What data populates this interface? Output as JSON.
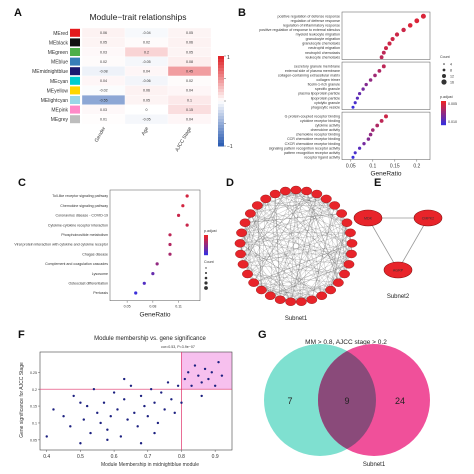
{
  "panels": {
    "A": "A",
    "B": "B",
    "C": "C",
    "D": "D",
    "E": "E",
    "F": "F",
    "G": "G"
  },
  "colors": {
    "heat_pos": "#e0262b",
    "heat_neg": "#2f5fb3",
    "heat_mid": "#ffffff",
    "dot_high": "#e8242a",
    "dot_low": "#3b2fd9",
    "node": "#e8242a",
    "node_edge": "#8a1010",
    "scatter": "#1c2080",
    "highlight": "#f08ce0",
    "cut": "#e0306a",
    "venn_left": "#7fe0d0",
    "venn_right": "#f0509a",
    "venn_overlap": "#8a4a7a"
  },
  "chart_data": [
    {
      "id": "A",
      "type": "heatmap",
      "title": "Module−trait relationships",
      "columns": [
        "Gender",
        "Age",
        "AJCC Stage"
      ],
      "rows": [
        {
          "name": "MEred",
          "color": "#e41a1c",
          "values": [
            0.06,
            -0.04,
            0.05
          ]
        },
        {
          "name": "MEblack",
          "color": "#111111",
          "values": [
            0.05,
            0.02,
            0.06
          ]
        },
        {
          "name": "MEgreen",
          "color": "#4daf4a",
          "values": [
            0.03,
            0.2,
            0.05
          ]
        },
        {
          "name": "MEblue",
          "color": "#377eb8",
          "values": [
            0.02,
            -0.05,
            0.08
          ]
        },
        {
          "name": "MEmidnightblue",
          "color": "#191970",
          "values": [
            -0.08,
            0.04,
            0.45
          ]
        },
        {
          "name": "MEcyan",
          "color": "#00ced1",
          "values": [
            0.04,
            -0.06,
            0.02
          ]
        },
        {
          "name": "MEyellow",
          "color": "#ffd700",
          "values": [
            -0.02,
            0.06,
            0.04
          ]
        },
        {
          "name": "MElightcyan",
          "color": "#9ad8e8",
          "values": [
            -0.55,
            0.05,
            0.1
          ]
        },
        {
          "name": "MEpink",
          "color": "#ff8ac8",
          "values": [
            0.03,
            0.0,
            0.15
          ]
        },
        {
          "name": "MEgrey",
          "color": "#bdbdbd",
          "values": [
            0.01,
            -0.05,
            0.04
          ]
        }
      ],
      "colorbar_ticks": [
        1,
        0.5,
        0,
        -0.5,
        -1
      ],
      "colorbar_visible_labels": [
        "1",
        "−1"
      ]
    },
    {
      "id": "B",
      "type": "scatter",
      "xlabel": "GeneRatio",
      "xticks": [
        0.05,
        0.1,
        0.15,
        0.2
      ],
      "xlim": [
        0.03,
        0.23
      ],
      "legend_count": "Count",
      "legend_padj": "p.adjust",
      "count_levels": [
        "4",
        "8",
        "12",
        "16"
      ],
      "padj_levels": [
        "0.005",
        "0.010"
      ],
      "groups": [
        {
          "terms": [
            {
              "label": "positive regulation of defense response",
              "x": 0.215,
              "padj": 0.001
            },
            {
              "label": "regulation of defense response",
              "x": 0.2,
              "padj": 0.001
            },
            {
              "label": "regulation of inflammatory response",
              "x": 0.185,
              "padj": 0.001
            },
            {
              "label": "positive regulation of response to external stimulus",
              "x": 0.17,
              "padj": 0.002
            },
            {
              "label": "myeloid leukocyte migration",
              "x": 0.155,
              "padj": 0.002
            },
            {
              "label": "granulocyte migration",
              "x": 0.145,
              "padj": 0.002
            },
            {
              "label": "granulocyte chemotaxis",
              "x": 0.138,
              "padj": 0.002
            },
            {
              "label": "neutrophil migration",
              "x": 0.13,
              "padj": 0.002
            },
            {
              "label": "neutrophil chemotaxis",
              "x": 0.125,
              "padj": 0.003
            },
            {
              "label": "leukocyte chemotaxis",
              "x": 0.12,
              "padj": 0.003
            }
          ]
        },
        {
          "terms": [
            {
              "label": "secretory granule membrane",
              "x": 0.125,
              "padj": 0.003
            },
            {
              "label": "external side of plasma membrane",
              "x": 0.115,
              "padj": 0.004
            },
            {
              "label": "collagen-containing extracellular matrix",
              "x": 0.105,
              "padj": 0.005
            },
            {
              "label": "collagen trimer",
              "x": 0.095,
              "padj": 0.006
            },
            {
              "label": "ficolin-1-rich granule",
              "x": 0.085,
              "padj": 0.007
            },
            {
              "label": "specific granule",
              "x": 0.078,
              "padj": 0.008
            },
            {
              "label": "plasma lipoprotein particle",
              "x": 0.07,
              "padj": 0.009
            },
            {
              "label": "lipoprotein particle",
              "x": 0.065,
              "padj": 0.01
            },
            {
              "label": "cytolytic granule",
              "x": 0.06,
              "padj": 0.011
            },
            {
              "label": "phagocytic vesicle",
              "x": 0.055,
              "padj": 0.012
            }
          ]
        },
        {
          "terms": [
            {
              "label": "G protein-coupled receptor binding",
              "x": 0.13,
              "padj": 0.002
            },
            {
              "label": "cytokine receptor binding",
              "x": 0.12,
              "padj": 0.003
            },
            {
              "label": "cytokine activity",
              "x": 0.11,
              "padj": 0.004
            },
            {
              "label": "chemokine activity",
              "x": 0.1,
              "padj": 0.005
            },
            {
              "label": "chemokine receptor binding",
              "x": 0.095,
              "padj": 0.006
            },
            {
              "label": "CCR chemokine receptor binding",
              "x": 0.09,
              "padj": 0.007
            },
            {
              "label": "CXCR chemokine receptor binding",
              "x": 0.08,
              "padj": 0.008
            },
            {
              "label": "signaling pattern recognition receptor activity",
              "x": 0.07,
              "padj": 0.01
            },
            {
              "label": "pattern recognition receptor activity",
              "x": 0.06,
              "padj": 0.011
            },
            {
              "label": "receptor ligand activity",
              "x": 0.055,
              "padj": 0.012
            }
          ]
        }
      ]
    },
    {
      "id": "C",
      "type": "scatter",
      "xlabel": "GeneRatio",
      "xticks": [
        0.05,
        0.08,
        0.11
      ],
      "xlim": [
        0.03,
        0.135
      ],
      "legend_padj": "p.adjust",
      "legend_count": "Count",
      "terms": [
        {
          "label": "Toll-like receptor signaling pathway",
          "x": 0.12,
          "padj": 0.002
        },
        {
          "label": "Chemokine signaling pathway",
          "x": 0.115,
          "padj": 0.002
        },
        {
          "label": "Coronavirus disease - COVID-19",
          "x": 0.11,
          "padj": 0.003
        },
        {
          "label": "Cytokine-cytokine receptor interaction",
          "x": 0.12,
          "padj": 0.003
        },
        {
          "label": "Phosphoinositide metabolism",
          "x": 0.1,
          "padj": 0.004
        },
        {
          "label": "Viral protein interaction with cytokine and cytokine receptor",
          "x": 0.1,
          "padj": 0.005
        },
        {
          "label": "Chagas disease",
          "x": 0.1,
          "padj": 0.006
        },
        {
          "label": "Complement and coagulation cascades",
          "x": 0.085,
          "padj": 0.008
        },
        {
          "label": "Lysosome",
          "x": 0.08,
          "padj": 0.012
        },
        {
          "label": "Osteoclast differentiation",
          "x": 0.07,
          "padj": 0.014
        },
        {
          "label": "Pertussis",
          "x": 0.06,
          "padj": 0.016
        }
      ]
    },
    {
      "id": "F",
      "type": "scatter",
      "title": "Module membership vs. gene significance",
      "subtitle": "cor=0.53, P=3.9e−07",
      "xlabel": "Module Membership in midnightblue module",
      "ylabel": "Gene significance for AJCC Stage",
      "xticks": [
        0.4,
        0.5,
        0.6,
        0.7,
        0.8,
        0.9
      ],
      "yticks": [
        0.05,
        0.1,
        0.15,
        0.2,
        0.25
      ],
      "xlim": [
        0.38,
        0.95
      ],
      "ylim": [
        0.02,
        0.31
      ],
      "x_threshold": 0.8,
      "y_threshold": 0.2,
      "points": [
        [
          0.4,
          0.06
        ],
        [
          0.42,
          0.14
        ],
        [
          0.45,
          0.12
        ],
        [
          0.47,
          0.09
        ],
        [
          0.48,
          0.18
        ],
        [
          0.5,
          0.04
        ],
        [
          0.51,
          0.11
        ],
        [
          0.52,
          0.15
        ],
        [
          0.53,
          0.07
        ],
        [
          0.54,
          0.2
        ],
        [
          0.55,
          0.13
        ],
        [
          0.56,
          0.1
        ],
        [
          0.57,
          0.16
        ],
        [
          0.58,
          0.08
        ],
        [
          0.59,
          0.12
        ],
        [
          0.6,
          0.19
        ],
        [
          0.61,
          0.14
        ],
        [
          0.62,
          0.06
        ],
        [
          0.63,
          0.17
        ],
        [
          0.64,
          0.11
        ],
        [
          0.65,
          0.21
        ],
        [
          0.66,
          0.13
        ],
        [
          0.67,
          0.09
        ],
        [
          0.68,
          0.18
        ],
        [
          0.69,
          0.15
        ],
        [
          0.7,
          0.12
        ],
        [
          0.71,
          0.2
        ],
        [
          0.72,
          0.16
        ],
        [
          0.73,
          0.1
        ],
        [
          0.74,
          0.19
        ],
        [
          0.75,
          0.14
        ],
        [
          0.76,
          0.22
        ],
        [
          0.77,
          0.17
        ],
        [
          0.78,
          0.13
        ],
        [
          0.79,
          0.21
        ],
        [
          0.8,
          0.16
        ],
        [
          0.81,
          0.23
        ],
        [
          0.82,
          0.25
        ],
        [
          0.83,
          0.21
        ],
        [
          0.84,
          0.27
        ],
        [
          0.85,
          0.24
        ],
        [
          0.86,
          0.22
        ],
        [
          0.87,
          0.26
        ],
        [
          0.88,
          0.23
        ],
        [
          0.89,
          0.25
        ],
        [
          0.9,
          0.21
        ],
        [
          0.91,
          0.28
        ],
        [
          0.92,
          0.24
        ],
        [
          0.5,
          0.16
        ],
        [
          0.58,
          0.05
        ],
        [
          0.63,
          0.23
        ],
        [
          0.72,
          0.07
        ],
        [
          0.86,
          0.18
        ],
        [
          0.68,
          0.04
        ]
      ]
    },
    {
      "id": "G",
      "type": "venn",
      "title": "MM > 0.8, AJCC stage > 0.2",
      "left_only": "7",
      "overlap": "9",
      "right_only": "24",
      "right_label": "Subnet1"
    }
  ],
  "network_D": {
    "label": "Subnet1",
    "node_count": 33
  },
  "network_E": {
    "label": "Subnet2",
    "nodes": [
      "MDK",
      "CMPK2",
      "AGRP"
    ]
  }
}
